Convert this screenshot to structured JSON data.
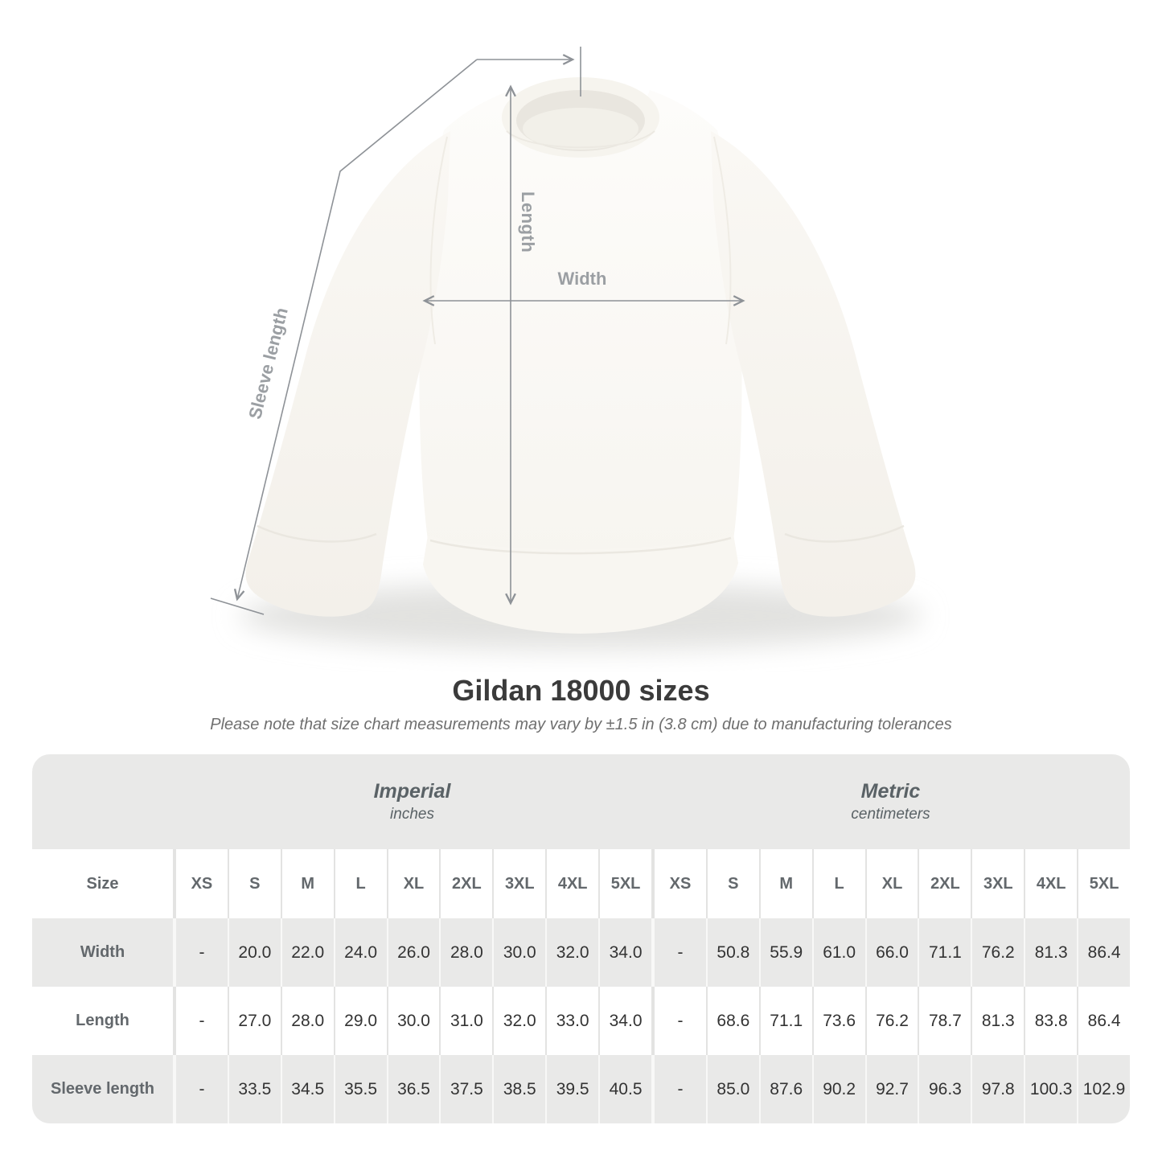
{
  "diagram": {
    "labels": {
      "length": "Length",
      "width": "Width",
      "sleeve": "Sleeve length"
    }
  },
  "title": "Gildan 18000 sizes",
  "note": "Please note that size chart measurements may vary by ±1.5 in (3.8 cm) due to manufacturing tolerances",
  "table": {
    "size_header_label": "Size",
    "unit_groups": [
      {
        "name": "Imperial",
        "unit": "inches"
      },
      {
        "name": "Metric",
        "unit": "centimeters"
      }
    ],
    "sizes": [
      "XS",
      "S",
      "M",
      "L",
      "XL",
      "2XL",
      "3XL",
      "4XL",
      "5XL"
    ],
    "rows": [
      {
        "label": "Width",
        "imperial": [
          "-",
          "20.0",
          "22.0",
          "24.0",
          "26.0",
          "28.0",
          "30.0",
          "32.0",
          "34.0"
        ],
        "metric": [
          "-",
          "50.8",
          "55.9",
          "61.0",
          "66.0",
          "71.1",
          "76.2",
          "81.3",
          "86.4"
        ]
      },
      {
        "label": "Length",
        "imperial": [
          "-",
          "27.0",
          "28.0",
          "29.0",
          "30.0",
          "31.0",
          "32.0",
          "33.0",
          "34.0"
        ],
        "metric": [
          "-",
          "68.6",
          "71.1",
          "73.6",
          "76.2",
          "78.7",
          "81.3",
          "83.8",
          "86.4"
        ]
      },
      {
        "label": "Sleeve length",
        "imperial": [
          "-",
          "33.5",
          "34.5",
          "35.5",
          "36.5",
          "37.5",
          "38.5",
          "39.5",
          "40.5"
        ],
        "metric": [
          "-",
          "85.0",
          "87.6",
          "90.2",
          "92.7",
          "96.3",
          "97.8",
          "100.3",
          "102.9"
        ]
      }
    ]
  },
  "chart_data": {
    "type": "table",
    "title": "Gildan 18000 sizes",
    "note": "Please note that size chart measurements may vary by ±1.5 in (3.8 cm) due to manufacturing tolerances",
    "unit_groups": [
      {
        "name": "Imperial",
        "unit": "inches"
      },
      {
        "name": "Metric",
        "unit": "centimeters"
      }
    ],
    "sizes": [
      "XS",
      "S",
      "M",
      "L",
      "XL",
      "2XL",
      "3XL",
      "4XL",
      "5XL"
    ],
    "rows": [
      {
        "label": "Width",
        "imperial": [
          null,
          20.0,
          22.0,
          24.0,
          26.0,
          28.0,
          30.0,
          32.0,
          34.0
        ],
        "metric": [
          null,
          50.8,
          55.9,
          61.0,
          66.0,
          71.1,
          76.2,
          81.3,
          86.4
        ]
      },
      {
        "label": "Length",
        "imperial": [
          null,
          27.0,
          28.0,
          29.0,
          30.0,
          31.0,
          32.0,
          33.0,
          34.0
        ],
        "metric": [
          null,
          68.6,
          71.1,
          73.6,
          76.2,
          78.7,
          81.3,
          83.8,
          86.4
        ]
      },
      {
        "label": "Sleeve length",
        "imperial": [
          null,
          33.5,
          34.5,
          35.5,
          36.5,
          37.5,
          38.5,
          39.5,
          40.5
        ],
        "metric": [
          null,
          85.0,
          87.6,
          90.2,
          92.7,
          96.3,
          97.8,
          100.3,
          102.9
        ]
      }
    ]
  },
  "colors": {
    "annotation_line": "#8e9297",
    "annotation_label": "#9b9fa3",
    "title_text": "#3b3b3b",
    "note_text": "#6f6f6f",
    "table_gray": "#e9e9e8",
    "header_text": "#63686c",
    "value_text": "#333333",
    "garment": "#fbfaf6"
  }
}
